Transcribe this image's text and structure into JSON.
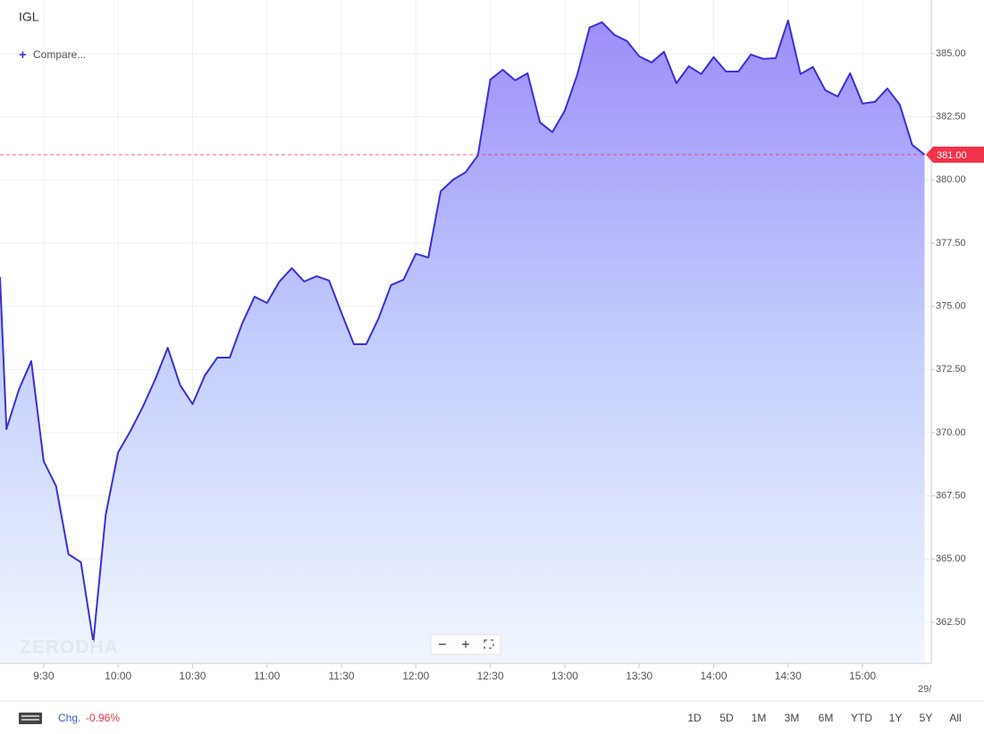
{
  "chart_data": {
    "type": "area",
    "title": "IGL",
    "color": "#3b2fd9",
    "grid": true,
    "x": [
      552.4,
      555,
      560,
      565,
      570,
      575,
      580,
      585,
      590,
      595,
      600,
      605,
      610,
      615,
      620,
      625,
      630,
      635,
      640,
      645,
      650,
      655,
      660,
      665,
      670,
      675,
      680,
      685,
      690,
      695,
      700,
      705,
      710,
      715,
      720,
      725,
      730,
      735,
      740,
      745,
      750,
      755,
      760,
      765,
      770,
      775,
      780,
      785,
      790,
      795,
      800,
      805,
      810,
      815,
      820,
      825,
      830,
      835,
      840,
      845,
      850,
      855,
      860,
      865,
      870,
      875,
      880,
      885,
      890,
      895,
      900,
      905,
      910,
      915,
      920,
      925
    ],
    "values": [
      376.16,
      370.14,
      371.7,
      372.83,
      368.87,
      367.88,
      365.19,
      364.87,
      361.72,
      366.75,
      369.22,
      370.07,
      371.03,
      372.12,
      373.36,
      371.88,
      371.13,
      372.27,
      372.97,
      372.97,
      374.32,
      375.38,
      375.13,
      375.98,
      376.51,
      375.98,
      376.19,
      376.02,
      374.74,
      373.5,
      373.5,
      374.53,
      375.84,
      376.05,
      377.08,
      376.93,
      379.55,
      380.01,
      380.3,
      380.97,
      383.97,
      384.36,
      383.94,
      384.22,
      382.28,
      381.89,
      382.74,
      384.15,
      386.03,
      386.24,
      385.74,
      385.5,
      384.89,
      384.65,
      385.07,
      383.83,
      384.5,
      384.19,
      384.86,
      384.29,
      384.29,
      384.96,
      384.79,
      384.82,
      386.31,
      384.19,
      384.47,
      383.55,
      383.3,
      384.22,
      383.02,
      383.09,
      383.62,
      382.98,
      381.39,
      381.0
    ],
    "xlim": [
      552.4,
      927.7
    ],
    "ylim": [
      360.87,
      387.12
    ],
    "xticks": [
      {
        "value": 570,
        "label": "9:30"
      },
      {
        "value": 600,
        "label": "10:00"
      },
      {
        "value": 630,
        "label": "10:30"
      },
      {
        "value": 660,
        "label": "11:00"
      },
      {
        "value": 690,
        "label": "11:30"
      },
      {
        "value": 720,
        "label": "12:00"
      },
      {
        "value": 750,
        "label": "12:30"
      },
      {
        "value": 780,
        "label": "13:00"
      },
      {
        "value": 810,
        "label": "13:30"
      },
      {
        "value": 840,
        "label": "14:00"
      },
      {
        "value": 870,
        "label": "14:30"
      },
      {
        "value": 900,
        "label": "15:00"
      }
    ],
    "yticks": [
      {
        "value": 362.5,
        "label": "362.50"
      },
      {
        "value": 365,
        "label": "365.00"
      },
      {
        "value": 367.5,
        "label": "367.50"
      },
      {
        "value": 370,
        "label": "370.00"
      },
      {
        "value": 372.5,
        "label": "372.50"
      },
      {
        "value": 375,
        "label": "375.00"
      },
      {
        "value": 377.5,
        "label": "377.50"
      },
      {
        "value": 380,
        "label": "380.00"
      },
      {
        "value": 382.5,
        "label": "382.50"
      },
      {
        "value": 385,
        "label": "385.00"
      }
    ],
    "last_price": {
      "value": 381,
      "label": "381.00",
      "color": "#f0334b"
    },
    "date_label": "29/"
  },
  "compare": "Compare...",
  "watermark": "ZERODHA",
  "change": {
    "label": "Chg.",
    "value": "-0.96%"
  },
  "ranges": [
    "1D",
    "5D",
    "1M",
    "3M",
    "6M",
    "YTD",
    "1Y",
    "5Y",
    "All"
  ]
}
